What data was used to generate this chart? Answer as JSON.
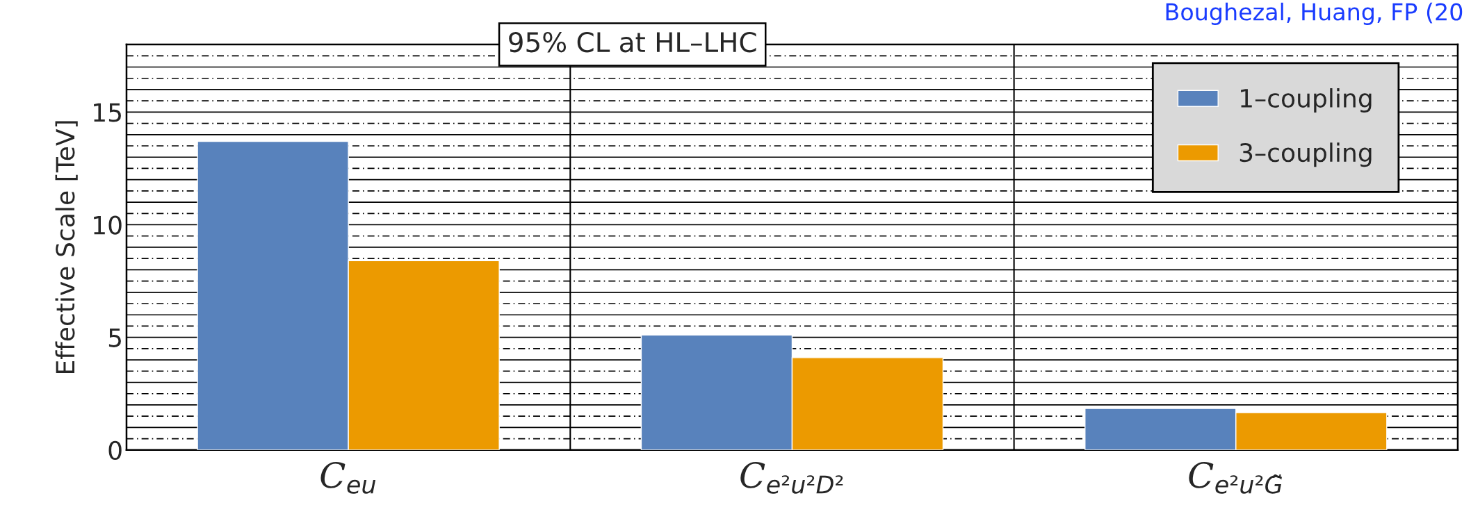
{
  "chart_data": {
    "type": "bar",
    "ylabel": "Effective Scale [TeV]",
    "categories": [
      "C$_{eu}$",
      "C$_{e²u²D²}$",
      "C$_{e²u²G̃}$"
    ],
    "series": [
      {
        "name": "1–coupling",
        "color": "#5882bc",
        "values": [
          13.7,
          5.1,
          1.84
        ]
      },
      {
        "name": "3–coupling",
        "color": "#ec9a00",
        "values": [
          8.4,
          4.1,
          1.66
        ]
      }
    ],
    "ylim": [
      0,
      18
    ],
    "yticks": [
      0,
      5,
      10,
      15
    ],
    "grid": true,
    "legend": "top right",
    "annotations": [
      "95% CL at HL–LHC",
      "Boughezal, Huang, FP (20"
    ]
  }
}
